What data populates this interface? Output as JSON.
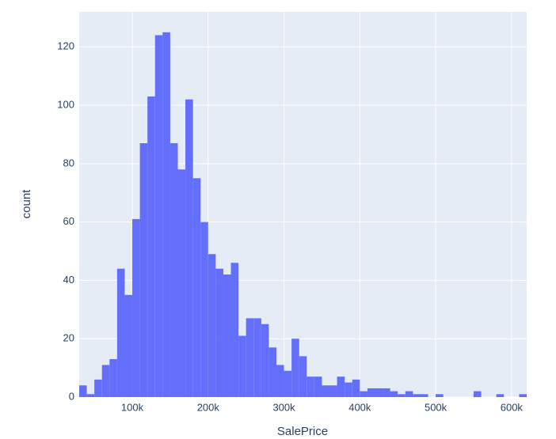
{
  "chart_data": {
    "type": "histogram",
    "x_label": "SalePrice",
    "y_label": "count",
    "color": "#636efa",
    "grid": true,
    "bins": [
      30000,
      40000,
      50000,
      60000,
      70000,
      80000,
      90000,
      100000,
      110000,
      120000,
      130000,
      140000,
      150000,
      160000,
      170000,
      180000,
      190000,
      200000,
      210000,
      220000,
      230000,
      240000,
      250000,
      260000,
      270000,
      280000,
      290000,
      300000,
      310000,
      320000,
      330000,
      340000,
      350000,
      360000,
      370000,
      380000,
      390000,
      400000,
      410000,
      420000,
      430000,
      440000,
      450000,
      460000,
      470000,
      480000,
      490000,
      500000,
      510000,
      520000,
      530000,
      540000,
      550000,
      560000,
      570000,
      580000,
      590000,
      600000,
      610000,
      620000
    ],
    "values": [
      4,
      1,
      6,
      11,
      13,
      44,
      35,
      61,
      87,
      103,
      124,
      125,
      87,
      78,
      102,
      75,
      60,
      49,
      44,
      42,
      46,
      21,
      27,
      27,
      25,
      17,
      11,
      9,
      20,
      14,
      7,
      7,
      4,
      4,
      7,
      5,
      6,
      2,
      3,
      3,
      3,
      2,
      1,
      2,
      1,
      1,
      0,
      1,
      0,
      0,
      0,
      0,
      2,
      0,
      0,
      1,
      0,
      0,
      1
    ],
    "xlim": [
      30000,
      620000
    ],
    "xticks": [
      {
        "value": 100000,
        "label": "100k"
      },
      {
        "value": 200000,
        "label": "200k"
      },
      {
        "value": 300000,
        "label": "300k"
      },
      {
        "value": 400000,
        "label": "400k"
      },
      {
        "value": 500000,
        "label": "500k"
      },
      {
        "value": 600000,
        "label": "600k"
      }
    ],
    "ylim": [
      0,
      132
    ],
    "yticks": [
      0,
      20,
      40,
      60,
      80,
      100,
      120
    ]
  }
}
